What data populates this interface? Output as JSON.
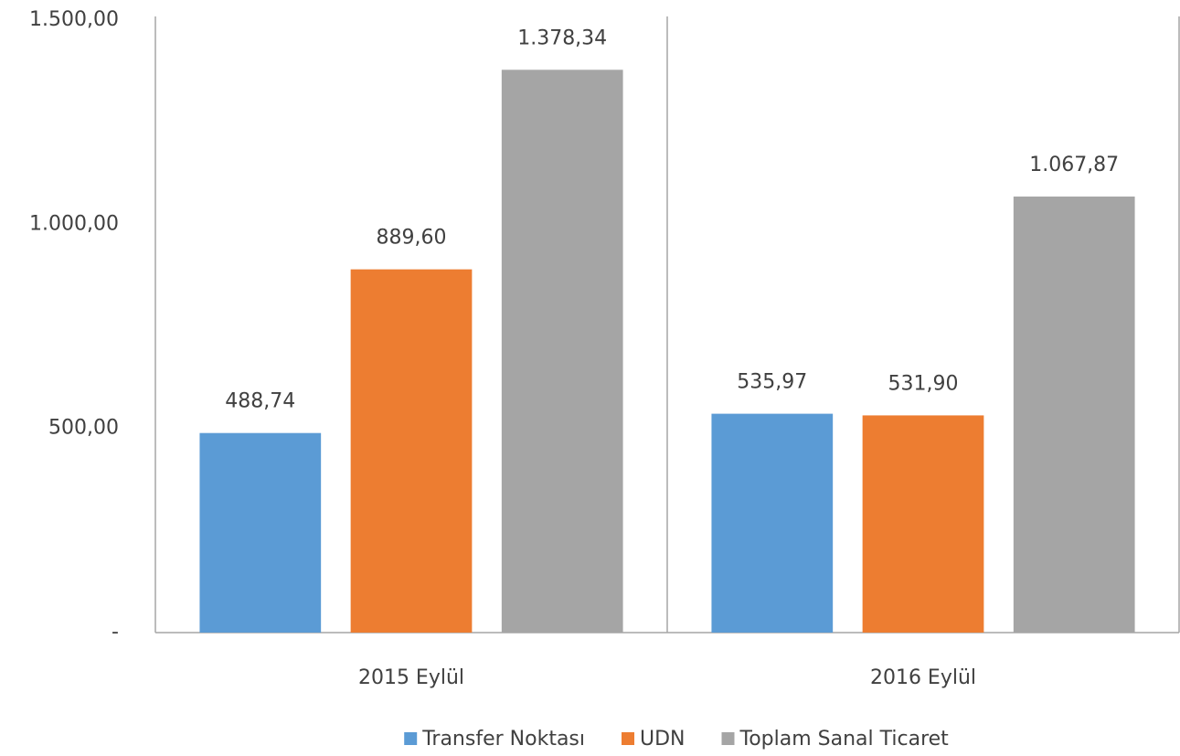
{
  "chart_data": {
    "type": "bar",
    "categories": [
      "2015 Eylül",
      "2016 Eylül"
    ],
    "series": [
      {
        "name": "Transfer Noktası",
        "color": "#5b9bd5",
        "values": [
          488.74,
          535.97
        ],
        "value_labels": [
          "488,74",
          "535,97"
        ]
      },
      {
        "name": "UDN",
        "color": "#ed7d31",
        "values": [
          889.6,
          531.9
        ],
        "value_labels": [
          "889,60",
          "531,90"
        ]
      },
      {
        "name": "Toplam Sanal Ticaret",
        "color": "#a5a5a5",
        "values": [
          1378.34,
          1067.87
        ],
        "value_labels": [
          "1.378,34",
          "1.067,87"
        ]
      }
    ],
    "ylim": [
      0,
      1500
    ],
    "yticks": [
      {
        "value": 0,
        "label": "-"
      },
      {
        "value": 500,
        "label": "500,00"
      },
      {
        "value": 1000,
        "label": "1.000,00"
      },
      {
        "value": 1500,
        "label": "1.500,00"
      }
    ],
    "grid": false,
    "legend": "bottom"
  }
}
